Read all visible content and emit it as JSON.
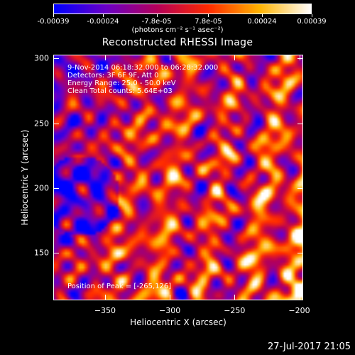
{
  "colorbar": {
    "tick_labels": [
      "-0.00039",
      "-0.00024",
      "-7.8e-05",
      "7.8e-05",
      "0.00024",
      "0.00039"
    ],
    "tick_values": [
      -0.00039,
      -0.00024,
      -7.8e-05,
      7.8e-05,
      0.00024,
      0.00039
    ],
    "units": "(photons cm⁻² s⁻¹ asec⁻²)",
    "range": [
      -0.00039,
      0.00039
    ],
    "colors": [
      "#0000ff",
      "#6a00c8",
      "#b4005a",
      "#ff2a00",
      "#ffb400",
      "#ffffff"
    ]
  },
  "chart_data": {
    "type": "heatmap",
    "title": "Reconstructed RHESSI Image",
    "xlabel": "Heliocentric X (arcsec)",
    "ylabel": "Heliocentric Y (arcsec)",
    "xlim": [
      -390,
      -197
    ],
    "ylim": [
      113,
      303
    ],
    "xticks": [
      -350,
      -300,
      -250,
      -200
    ],
    "xtick_labels": [
      "−350",
      "−300",
      "−250",
      "−200"
    ],
    "yticks": [
      150,
      200,
      250,
      300
    ],
    "ytick_labels": [
      "150",
      "200",
      "250",
      "300"
    ],
    "peak": {
      "x": -265,
      "y": 126
    },
    "annotations": [
      "9-Nov-2014 06:18:32.000 to 06:28:32.000",
      "Detectors: 3F 6F 9F, Att 0",
      "Energy Range: 25.0 - 50.0 keV",
      "Clean    Total counts: 5.64E+03"
    ],
    "peak_label": "Position of Peak = [-265,126]"
  },
  "footer": {
    "timestamp": "27-Jul-2017 21:05"
  }
}
